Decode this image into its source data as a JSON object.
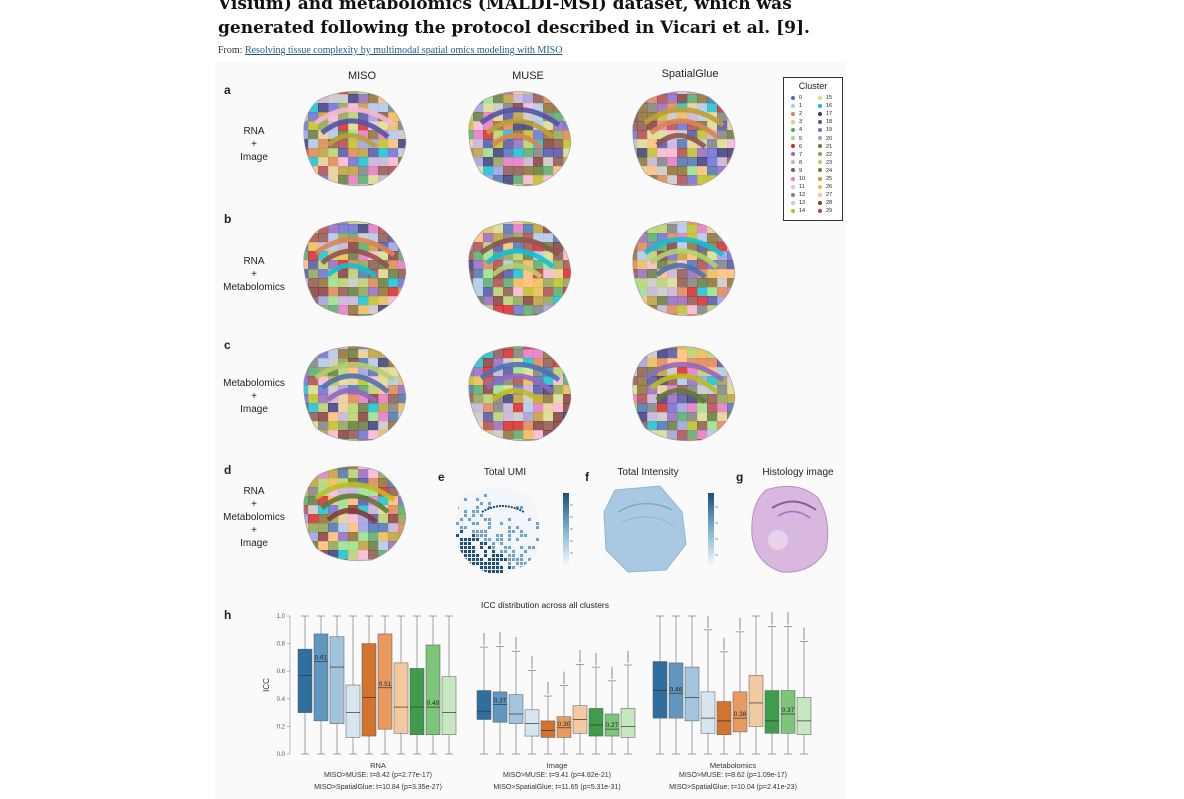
{
  "caption": {
    "title": "Visium) and metabolomics (MALDI-MSI) dataset, which was generated following the protocol described in Vicari et al. [9].",
    "from_prefix": "From: ",
    "from_link": "Resolving tissue complexity by multimodal spatial omics modeling with MISO"
  },
  "figure": {
    "columns": [
      "MISO",
      "MUSE",
      "SpatialGlue"
    ],
    "panels": {
      "a": {
        "letter": "a",
        "label_lines": [
          "RNA",
          "+",
          "Image"
        ]
      },
      "b": {
        "letter": "b",
        "label_lines": [
          "RNA",
          "+",
          "Metabolomics"
        ]
      },
      "c": {
        "letter": "c",
        "label_lines": [
          "Metabolomics",
          "+",
          "Image"
        ]
      },
      "d": {
        "letter": "d",
        "label_lines": [
          "RNA",
          "+",
          "Metabolomics",
          "+",
          "Image"
        ]
      },
      "e": {
        "letter": "e",
        "title": "Total UMI"
      },
      "f": {
        "letter": "f",
        "title": "Total Intensity"
      },
      "g": {
        "letter": "g",
        "title": "Histology image"
      },
      "h": {
        "letter": "h"
      }
    },
    "legend": {
      "title": "Cluster",
      "clusters": [
        {
          "id": "0",
          "color": "#4c72b0"
        },
        {
          "id": "1",
          "color": "#aec7e8"
        },
        {
          "id": "2",
          "color": "#dd8452"
        },
        {
          "id": "3",
          "color": "#ffbb78"
        },
        {
          "id": "4",
          "color": "#55a868"
        },
        {
          "id": "5",
          "color": "#98df8a"
        },
        {
          "id": "6",
          "color": "#d62728"
        },
        {
          "id": "7",
          "color": "#9467bd"
        },
        {
          "id": "8",
          "color": "#c5b0d5"
        },
        {
          "id": "9",
          "color": "#8c564b"
        },
        {
          "id": "10",
          "color": "#e377c2"
        },
        {
          "id": "11",
          "color": "#f7b6d2"
        },
        {
          "id": "12",
          "color": "#7f7f7f"
        },
        {
          "id": "13",
          "color": "#c7c7c7"
        },
        {
          "id": "14",
          "color": "#bcbd22"
        },
        {
          "id": "15",
          "color": "#dbdb8d"
        },
        {
          "id": "16",
          "color": "#17becf"
        },
        {
          "id": "17",
          "color": "#393b79"
        },
        {
          "id": "18",
          "color": "#5254a3"
        },
        {
          "id": "19",
          "color": "#6b6ecf"
        },
        {
          "id": "20",
          "color": "#9c9ede"
        },
        {
          "id": "21",
          "color": "#637939"
        },
        {
          "id": "22",
          "color": "#8ca252"
        },
        {
          "id": "23",
          "color": "#b5cf6b"
        },
        {
          "id": "24",
          "color": "#8c6d31"
        },
        {
          "id": "25",
          "color": "#bd9e39"
        },
        {
          "id": "26",
          "color": "#e7ba52"
        },
        {
          "id": "27",
          "color": "#e7cb94"
        },
        {
          "id": "28",
          "color": "#843c39"
        },
        {
          "id": "29",
          "color": "#ad494a"
        }
      ]
    }
  },
  "chart_data": {
    "type": "box",
    "title": "ICC distribution across all clusters",
    "ylabel": "ICC",
    "ylim": [
      0.0,
      1.0
    ],
    "yticks": [
      "0.0",
      "0.2",
      "0.4",
      "0.6",
      "0.8",
      "1.0"
    ],
    "groups": [
      {
        "name": "RNA",
        "stats": [
          "MISO>MUSE: t=8.42 (p=2.77e-17)",
          "MISO>SpatialGlue: t=10.84 (p=3.35e-27)"
        ],
        "annotations": [
          "0.61",
          "0.51",
          "0.49"
        ],
        "boxes": [
          {
            "q1": 0.3,
            "median": 0.57,
            "q3": 0.76,
            "color": "#2f6f9f"
          },
          {
            "q1": 0.24,
            "median": 0.67,
            "q3": 0.87,
            "color": "#5f97c1"
          },
          {
            "q1": 0.22,
            "median": 0.63,
            "q3": 0.85,
            "color": "#a3c4dd"
          },
          {
            "q1": 0.12,
            "median": 0.3,
            "q3": 0.5,
            "color": "#d5e6f1"
          },
          {
            "q1": 0.13,
            "median": 0.41,
            "q3": 0.8,
            "color": "#d0742f"
          },
          {
            "q1": 0.18,
            "median": 0.48,
            "q3": 0.87,
            "color": "#e89a5f"
          },
          {
            "q1": 0.15,
            "median": 0.34,
            "q3": 0.66,
            "color": "#f3c9a0"
          },
          {
            "q1": 0.14,
            "median": 0.34,
            "q3": 0.62,
            "color": "#3e9c4a"
          },
          {
            "q1": 0.14,
            "median": 0.34,
            "q3": 0.79,
            "color": "#7cc579"
          },
          {
            "q1": 0.14,
            "median": 0.3,
            "q3": 0.56,
            "color": "#c7e7c0"
          }
        ]
      },
      {
        "name": "Image",
        "stats": [
          "MISO>MUSE: t=9.41 (p=4.82e-21)",
          "MISO>SpatialGlue: t=11.65 (p=5.31e-31)"
        ],
        "annotations": [
          "0.37",
          "0.30",
          "0.27"
        ],
        "boxes": [
          {
            "q1": 0.25,
            "median": 0.31,
            "q3": 0.46,
            "color": "#2f6f9f"
          },
          {
            "q1": 0.23,
            "median": 0.36,
            "q3": 0.45,
            "color": "#5f97c1"
          },
          {
            "q1": 0.22,
            "median": 0.29,
            "q3": 0.43,
            "color": "#a3c4dd"
          },
          {
            "q1": 0.13,
            "median": 0.22,
            "q3": 0.32,
            "color": "#d5e6f1"
          },
          {
            "q1": 0.12,
            "median": 0.17,
            "q3": 0.24,
            "color": "#d0742f"
          },
          {
            "q1": 0.12,
            "median": 0.19,
            "q3": 0.27,
            "color": "#e89a5f"
          },
          {
            "q1": 0.15,
            "median": 0.25,
            "q3": 0.35,
            "color": "#f3c9a0"
          },
          {
            "q1": 0.13,
            "median": 0.21,
            "q3": 0.33,
            "color": "#3e9c4a"
          },
          {
            "q1": 0.13,
            "median": 0.18,
            "q3": 0.29,
            "color": "#7cc579"
          },
          {
            "q1": 0.12,
            "median": 0.2,
            "q3": 0.33,
            "color": "#c7e7c0"
          }
        ]
      },
      {
        "name": "Metabolomics",
        "stats": [
          "MISO>MUSE: t=8.62 (p=1.09e-17)",
          "MISO>SpatialGlue: t=10.04 (p=2.41e-23)"
        ],
        "annotations": [
          "0.46",
          "0.38",
          "0.37"
        ],
        "boxes": [
          {
            "q1": 0.26,
            "median": 0.46,
            "q3": 0.67,
            "color": "#2f6f9f"
          },
          {
            "q1": 0.26,
            "median": 0.44,
            "q3": 0.66,
            "color": "#5f97c1"
          },
          {
            "q1": 0.24,
            "median": 0.41,
            "q3": 0.63,
            "color": "#a3c4dd"
          },
          {
            "q1": 0.15,
            "median": 0.26,
            "q3": 0.45,
            "color": "#d5e6f1"
          },
          {
            "q1": 0.14,
            "median": 0.24,
            "q3": 0.38,
            "color": "#d0742f"
          },
          {
            "q1": 0.16,
            "median": 0.26,
            "q3": 0.45,
            "color": "#e89a5f"
          },
          {
            "q1": 0.2,
            "median": 0.37,
            "q3": 0.57,
            "color": "#f3c9a0"
          },
          {
            "q1": 0.15,
            "median": 0.24,
            "q3": 0.46,
            "color": "#3e9c4a"
          },
          {
            "q1": 0.15,
            "median": 0.29,
            "q3": 0.46,
            "color": "#7cc579"
          },
          {
            "q1": 0.14,
            "median": 0.24,
            "q3": 0.41,
            "color": "#c7e7c0"
          }
        ]
      }
    ]
  }
}
